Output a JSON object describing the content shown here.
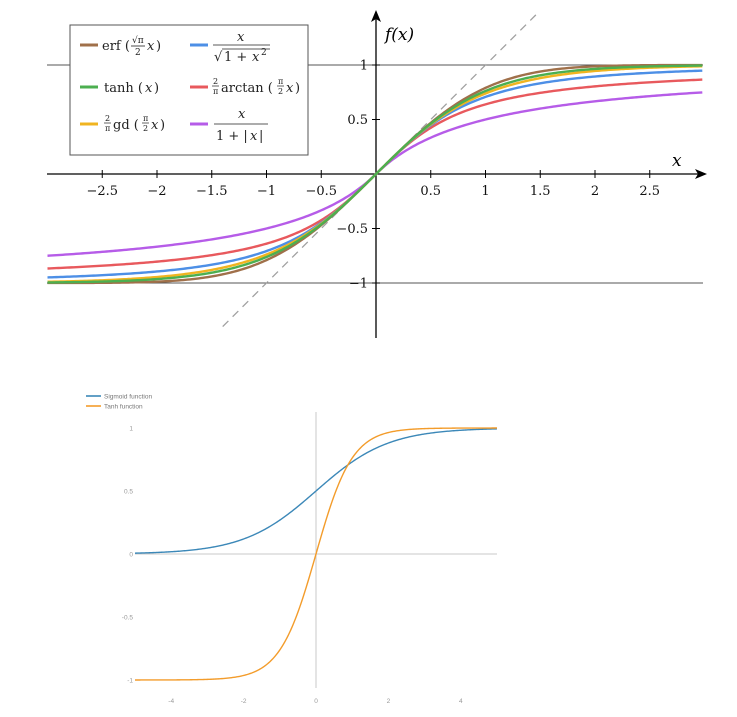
{
  "chart_data": [
    {
      "type": "line",
      "title": "",
      "ylabel": "f(x)",
      "xlabel": "x",
      "xlim": [
        -3,
        3
      ],
      "ylim": [
        -1.5,
        1.5
      ],
      "x_ticks": [
        "-2.5",
        "-2",
        "-1.5",
        "-1",
        "-0.5",
        "0.5",
        "1",
        "1.5",
        "2",
        "2.5"
      ],
      "y_ticks": [
        "1",
        "0.5",
        "-0.5",
        "-1"
      ],
      "horizontal_reference_lines": [
        1,
        -1
      ],
      "reference_line": {
        "type": "dashed",
        "equation": "y = x",
        "color": "#a0a0a0"
      },
      "legend_position": "top-left",
      "grid": false,
      "series": [
        {
          "name": "erf (√π/2 x)",
          "color": "#a0704a",
          "function": "erf"
        },
        {
          "name": "x / √(1 + x²)",
          "color": "#4d8fe6",
          "function": "algebraic"
        },
        {
          "name": "tanh (x)",
          "color": "#4caf50",
          "function": "tanh"
        },
        {
          "name": "2/π arctan (π/2 x)",
          "color": "#e8595d",
          "function": "arctan"
        },
        {
          "name": "2/π gd (π/2 x)",
          "color": "#f0b420",
          "function": "gd"
        },
        {
          "name": "x / (1 + |x|)",
          "color": "#b65ce8",
          "function": "softsign"
        }
      ]
    },
    {
      "type": "line",
      "title": "",
      "xlabel": "",
      "ylabel": "",
      "xlim": [
        -5,
        5
      ],
      "ylim": [
        -1,
        1
      ],
      "x_ticks": [
        "-4",
        "-2",
        "0",
        "2",
        "4"
      ],
      "y_ticks": [
        "1",
        "0.5",
        "0",
        "-0.5",
        "-1"
      ],
      "legend_position": "top-left",
      "grid": false,
      "series": [
        {
          "name": "Sigmoid function",
          "color": "#3c88b8",
          "function": "sigmoid"
        },
        {
          "name": "Tanh function",
          "color": "#f39c2b",
          "function": "tanh"
        }
      ]
    }
  ]
}
